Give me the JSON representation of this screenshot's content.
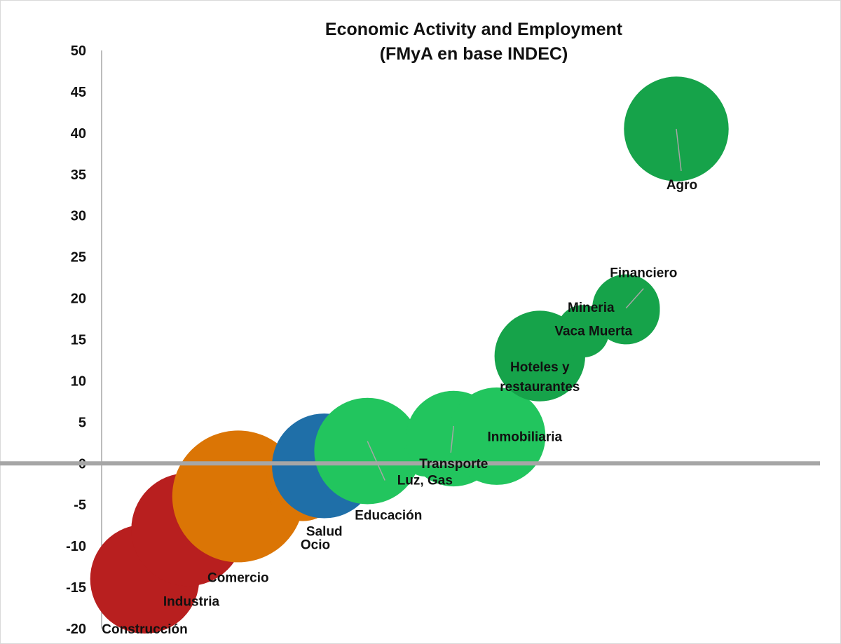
{
  "chart_data": {
    "type": "scatter",
    "subtype": "bubble",
    "title": "Economic Activity and Employment",
    "subtitle": "(FMyA en base INDEC)",
    "ylim": [
      -20,
      50
    ],
    "yticks": [
      "50",
      "45",
      "40",
      "35",
      "30",
      "25",
      "20",
      "15",
      "10",
      "5",
      "0",
      "-5",
      "-10",
      "-15",
      "-20"
    ],
    "xlim": [
      0,
      100
    ],
    "grid": false,
    "legend": "none",
    "colors": {
      "negative": "#B81F1F",
      "ocio": "#DB7505",
      "salud": "#1F6FA8",
      "light_green": "#22C55E",
      "dark_green": "#16A34A",
      "axis": "#A6A6A6",
      "leader": "#A6A6A6"
    },
    "points": [
      {
        "label": "Construcción",
        "x": 6,
        "y": -14,
        "size": 65,
        "color": "#B81F1F"
      },
      {
        "label": "Industria",
        "x": 12,
        "y": -8,
        "size": 70,
        "color": "#B81F1F"
      },
      {
        "label": "Comercio",
        "x": 19,
        "y": -4,
        "size": 95,
        "color": "#DB7505"
      },
      {
        "label": "Ocio",
        "x": 28,
        "y": -2.5,
        "size": 30,
        "color": "#DB7505"
      },
      {
        "label": "Salud",
        "x": 31,
        "y": -0.3,
        "size": 60,
        "color": "#1F6FA8"
      },
      {
        "label": "Educación",
        "x": 37,
        "y": 1.5,
        "size": 62,
        "color": "#22C55E"
      },
      {
        "label": "Luz, Gas",
        "x": 45,
        "y": 1,
        "size": 10,
        "color": "#22C55E"
      },
      {
        "label": "Transporte",
        "x": 49,
        "y": 3,
        "size": 50,
        "color": "#22C55E"
      },
      {
        "label": "Inmobiliaria",
        "x": 55,
        "y": 3.3,
        "size": 52,
        "color": "#22C55E"
      },
      {
        "label": "Hoteles y restaurantes",
        "x": 61,
        "y": 13,
        "size": 45,
        "color": "#16A34A"
      },
      {
        "label": "Vaca Muerta",
        "x": 67,
        "y": 16,
        "size": 15,
        "color": "#16A34A"
      },
      {
        "label": "Mineria",
        "x": 73,
        "y": 18.5,
        "size": 25,
        "color": "#16A34A"
      },
      {
        "label": "Financiero",
        "x": 73,
        "y": 18.8,
        "size": 25,
        "color": "#16A34A"
      },
      {
        "label": "Agro",
        "x": 80,
        "y": 40.5,
        "size": 60,
        "color": "#16A34A"
      }
    ]
  }
}
